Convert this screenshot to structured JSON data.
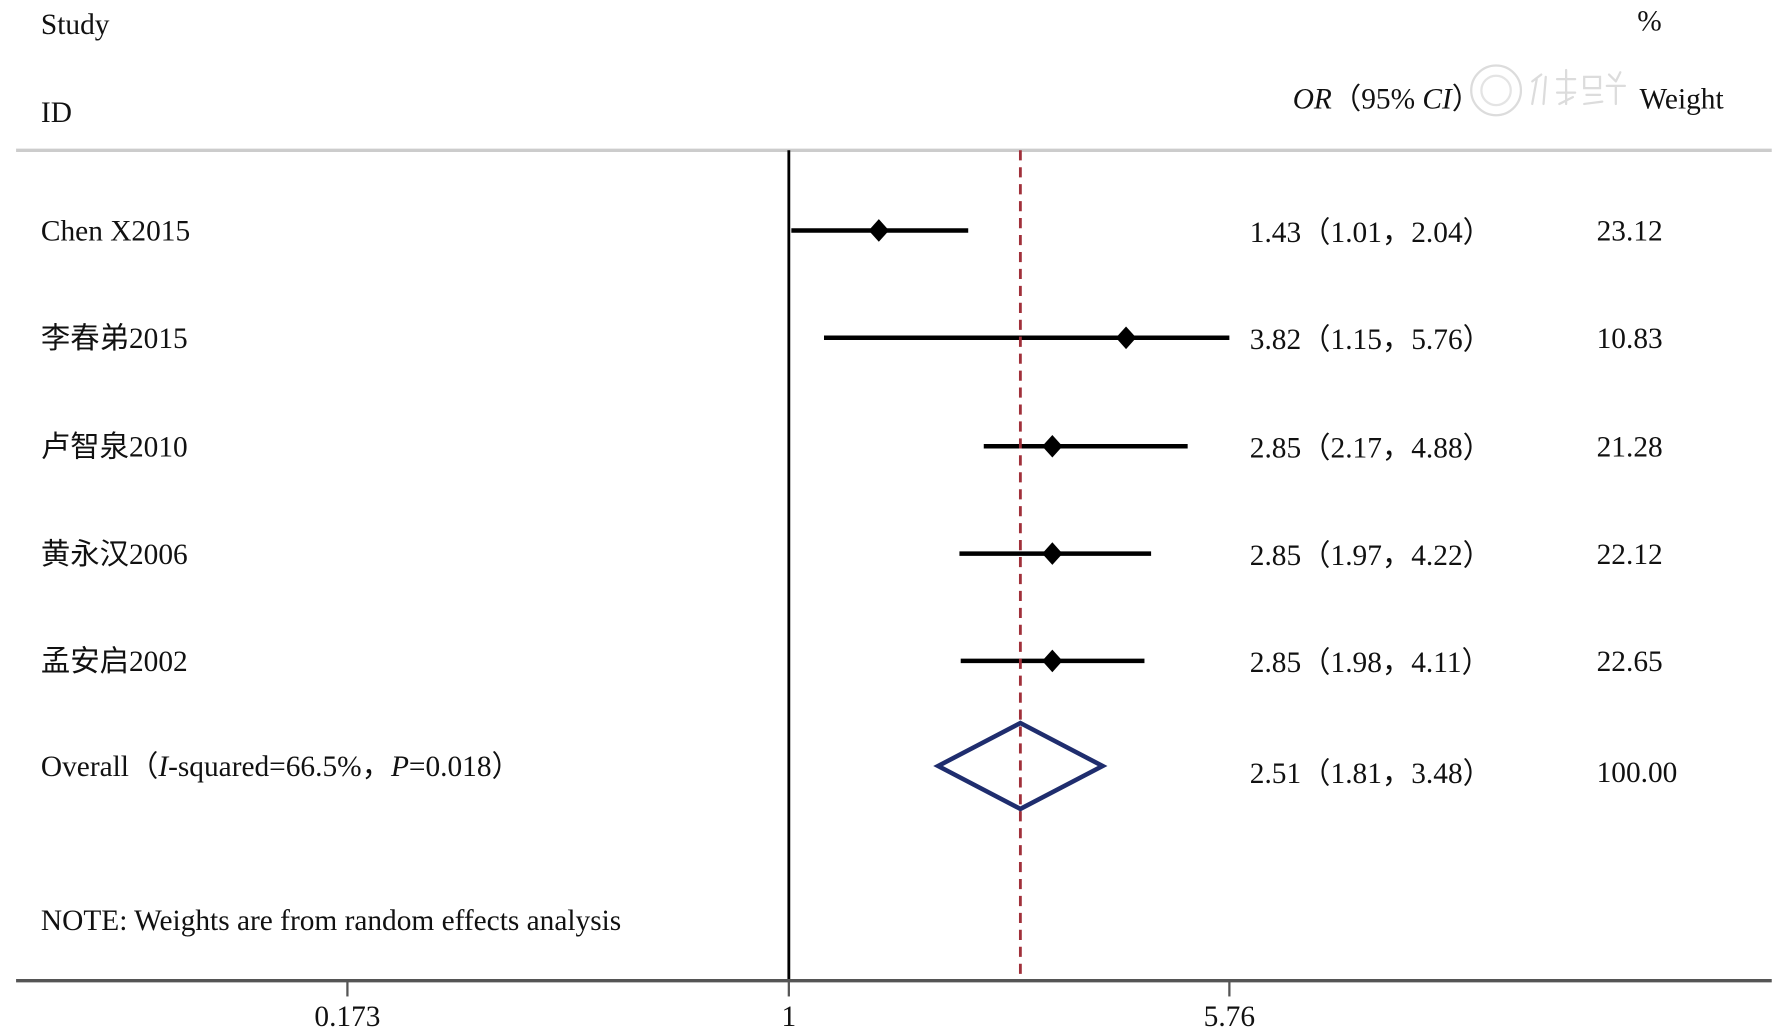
{
  "chart_data": {
    "type": "forest",
    "scale": "log",
    "header": {
      "study": "Study",
      "id": "ID",
      "or_italic": "OR",
      "or_open": "（95% ",
      "ci_italic": "CI",
      "or_close": "）",
      "pct": "%",
      "weight": "Weight"
    },
    "studies": [
      {
        "name": "Chen X2015",
        "or": 1.43,
        "lo": 1.01,
        "hi": 2.04,
        "label": "1.43（1.01，2.04）",
        "weight": "23.12"
      },
      {
        "name": "李春弟2015",
        "or": 3.82,
        "lo": 1.15,
        "hi": 5.76,
        "label": "3.82（1.15，5.76）",
        "weight": "10.83"
      },
      {
        "name": "卢智泉2010",
        "or": 2.85,
        "lo": 2.17,
        "hi": 4.88,
        "label": "2.85（2.17，4.88）",
        "weight": "21.28"
      },
      {
        "name": "黄永汉2006",
        "or": 2.85,
        "lo": 1.97,
        "hi": 4.22,
        "label": "2.85（1.97，4.22）",
        "weight": "22.12"
      },
      {
        "name": "孟安启2002",
        "or": 2.85,
        "lo": 1.98,
        "hi": 4.11,
        "label": "2.85（1.98，4.11）",
        "weight": "22.65"
      }
    ],
    "overall": {
      "prefix": "Overall（",
      "i_italic": "I",
      "isq": "-squared=66.5%，",
      "p_italic": "P",
      "pval": "=0.018）",
      "or": 2.51,
      "lo": 1.81,
      "hi": 3.48,
      "label": "2.51（1.81，3.48）",
      "weight": "100.00"
    },
    "note": "NOTE: Weights are from random effects analysis",
    "x_ticks": [
      {
        "value": 0.173,
        "label": "0.173"
      },
      {
        "value": 1,
        "label": "1"
      },
      {
        "value": 5.76,
        "label": "5.76"
      }
    ],
    "null_line": 1,
    "xlim": [
      0.173,
      5.76
    ],
    "colors": {
      "marker": "#000000",
      "diamond": "#1f2d6e",
      "ref_line": "#a0303a"
    }
  },
  "watermark": "中华医学会"
}
